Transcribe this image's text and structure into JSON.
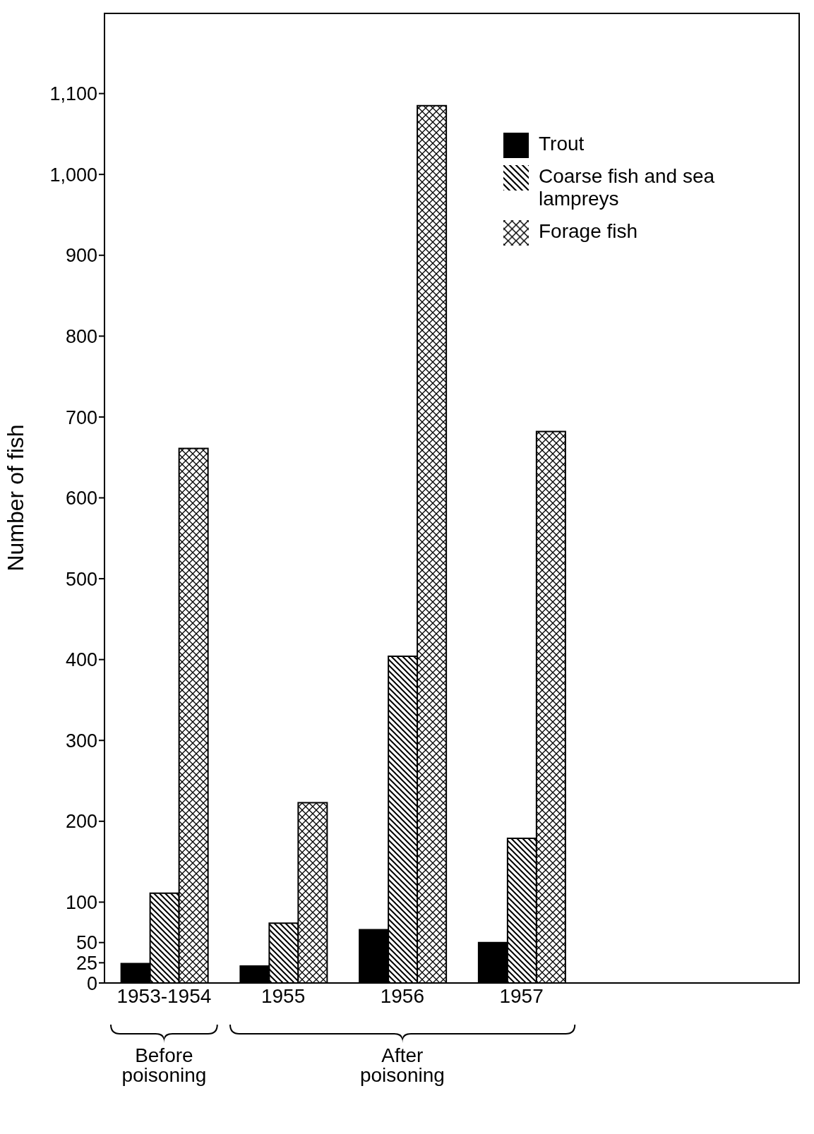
{
  "chart_data": {
    "type": "bar",
    "ylabel": "Number of fish",
    "categories": [
      "1953-1954",
      "1955",
      "1956",
      "1957"
    ],
    "series": [
      {
        "name": "Trout",
        "color": "#000000",
        "values": [
          24,
          21,
          66,
          50
        ]
      },
      {
        "name": "Coarse fish and sea lampreys",
        "color": "#000000",
        "values": [
          111,
          74,
          404,
          179
        ]
      },
      {
        "name": "Forage fish",
        "color": "#000000",
        "values": [
          661,
          223,
          1085,
          682
        ]
      }
    ],
    "ylim": [
      0,
      1200
    ],
    "yticks": [
      0,
      25,
      50,
      100,
      200,
      300,
      400,
      500,
      600,
      700,
      800,
      900,
      {
        "value": 1000,
        "label": "1,000"
      },
      {
        "value": 1100,
        "label": "1,100"
      }
    ],
    "legend": "top right",
    "annotations": [
      "Before poisoning",
      "After poisoning"
    ]
  }
}
